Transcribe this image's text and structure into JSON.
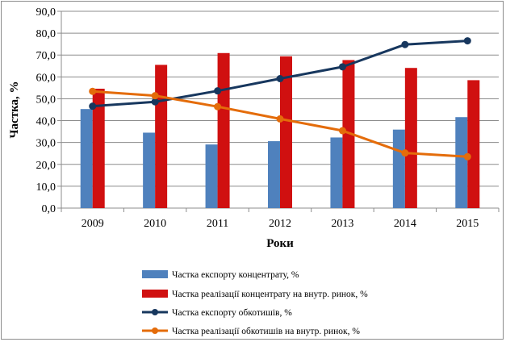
{
  "chart_data": {
    "type": "bar",
    "categories": [
      "2009",
      "2010",
      "2011",
      "2012",
      "2013",
      "2014",
      "2015"
    ],
    "xlabel": "Роки",
    "ylabel": "Частка, %",
    "ylim": [
      0,
      90
    ],
    "yticks": [
      "0,0",
      "10,0",
      "20,0",
      "30,0",
      "40,0",
      "50,0",
      "60,0",
      "70,0",
      "80,0",
      "90,0"
    ],
    "grid": true,
    "legend_position": "bottom",
    "series": [
      {
        "name": "Частка експорту концентрату, %",
        "kind": "bar",
        "color": "#4f81bd",
        "values": [
          45.3,
          34.5,
          29.1,
          30.6,
          32.3,
          35.9,
          41.6
        ]
      },
      {
        "name": "Частка реалізації концентрату на внутр. ринок, %",
        "kind": "bar",
        "color": "#d01010",
        "values": [
          54.6,
          65.5,
          70.9,
          69.4,
          67.7,
          64.1,
          58.5
        ]
      },
      {
        "name": "Частка експорту обкотишів, %",
        "kind": "line",
        "color": "#17375e",
        "values": [
          46.6,
          48.6,
          53.6,
          59.2,
          64.6,
          74.8,
          76.5
        ]
      },
      {
        "name": "Частка реалізації обкотишів на внутр. ринок, %",
        "kind": "line",
        "color": "#e46c0a",
        "values": [
          53.4,
          51.4,
          46.4,
          40.8,
          35.4,
          25.2,
          23.5
        ]
      }
    ]
  }
}
